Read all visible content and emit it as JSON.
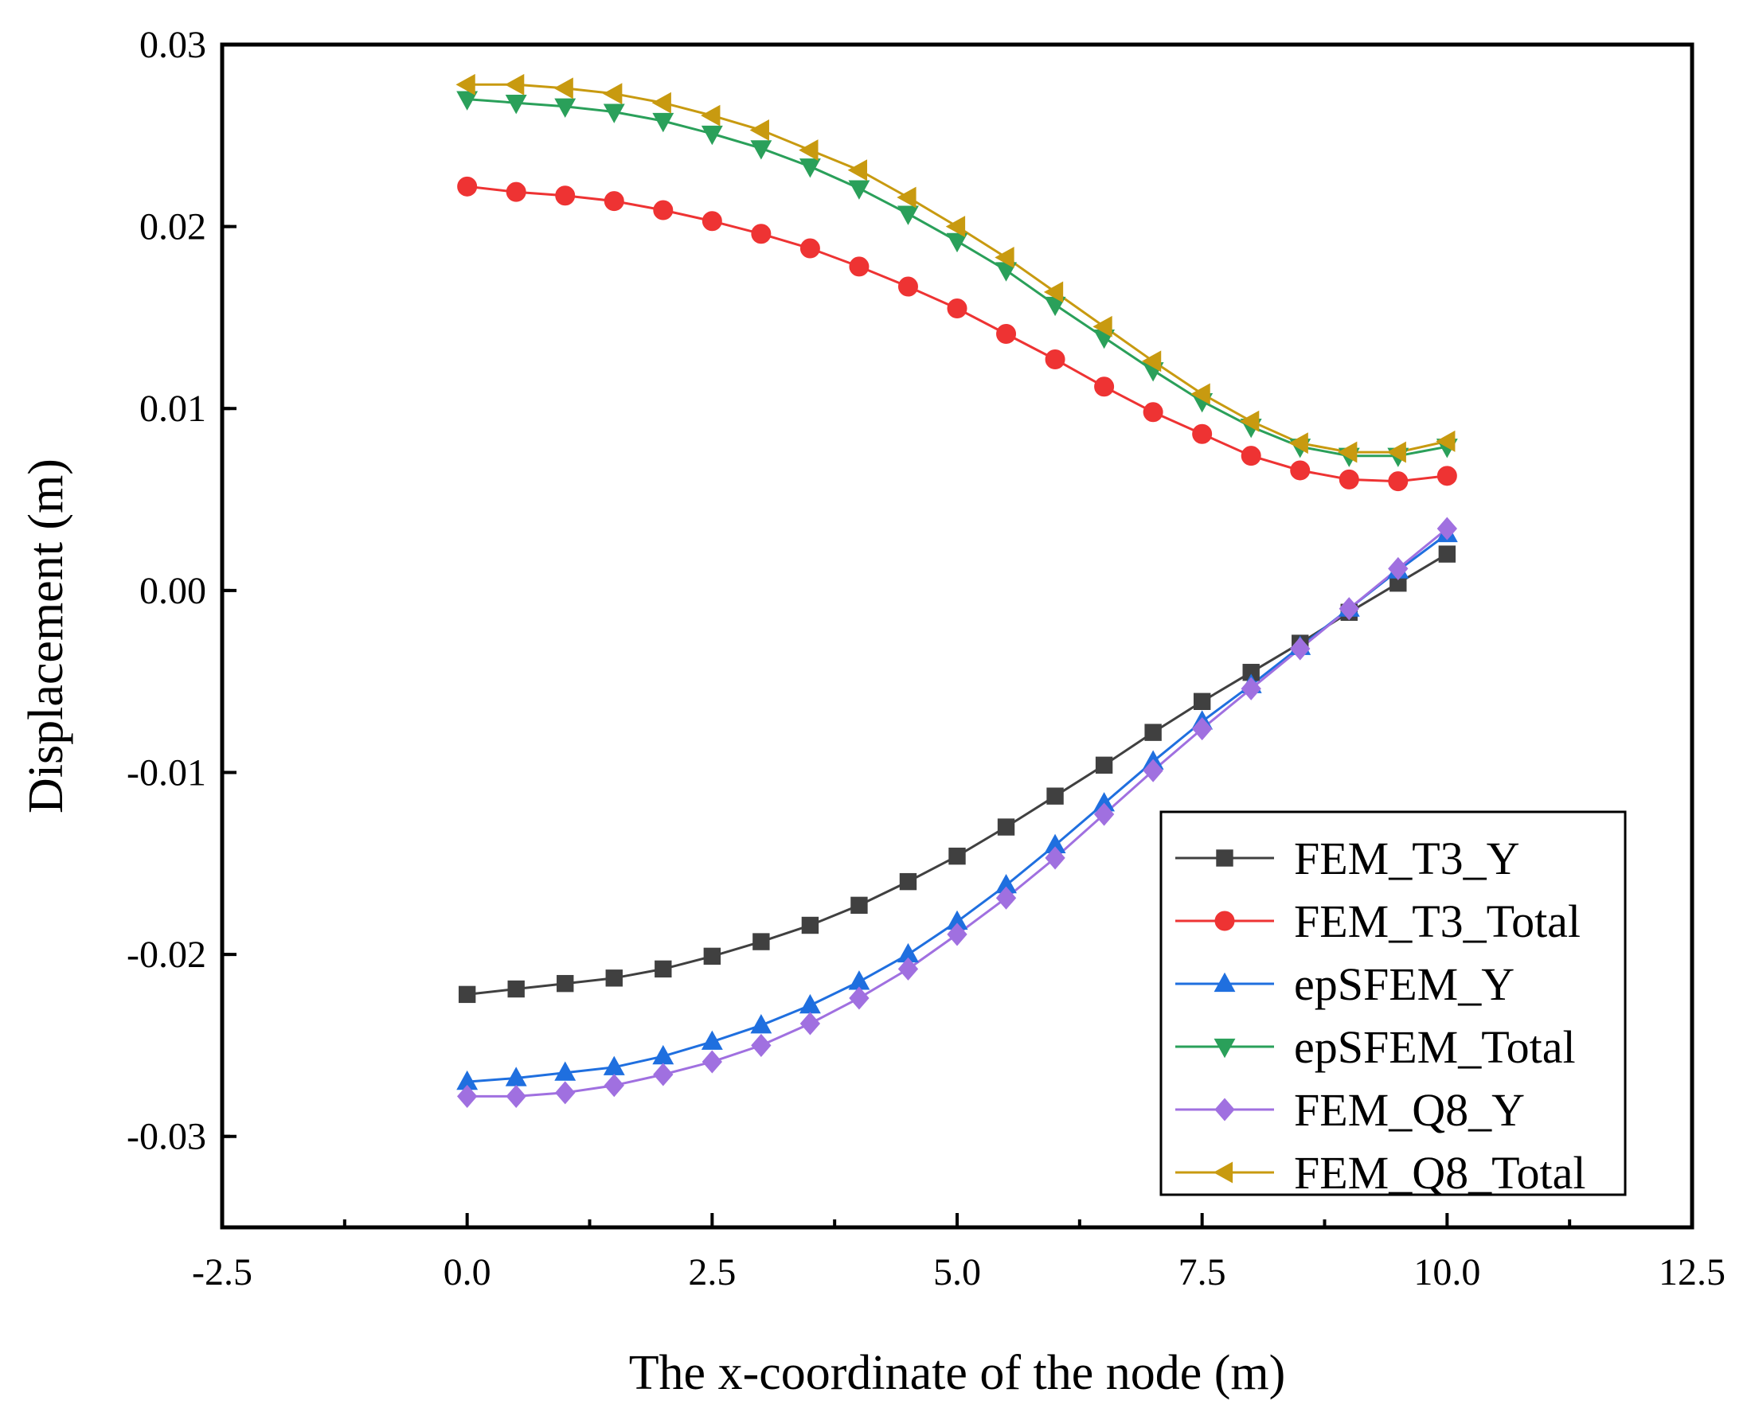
{
  "chart_data": {
    "type": "line",
    "title": "",
    "xlabel": "The x-coordinate of the node (m)",
    "ylabel": "Displacement (m)",
    "xlim": [
      -2.5,
      12.5
    ],
    "ylim": [
      -0.035,
      0.03
    ],
    "xticks": [
      -2.5,
      0.0,
      2.5,
      5.0,
      7.5,
      10.0,
      12.5
    ],
    "xtick_labels": [
      "-2.5",
      "0.0",
      "2.5",
      "5.0",
      "7.5",
      "10.0",
      "12.5"
    ],
    "yticks": [
      -0.03,
      -0.02,
      -0.01,
      0.0,
      0.01,
      0.02,
      0.03
    ],
    "ytick_labels": [
      "-0.03",
      "-0.02",
      "-0.01",
      "0.00",
      "0.01",
      "0.02",
      "0.03"
    ],
    "grid": false,
    "legend_position": "bottom-right",
    "x": [
      0,
      0.5,
      1,
      1.5,
      2,
      2.5,
      3,
      3.5,
      4,
      4.5,
      5,
      5.5,
      6,
      6.5,
      7,
      7.5,
      8,
      8.5,
      9,
      9.5,
      10
    ],
    "series": [
      {
        "name": "FEM_T3_Y",
        "color": "#404040",
        "marker": "square",
        "values": [
          -0.0222,
          -0.0219,
          -0.0216,
          -0.0213,
          -0.0208,
          -0.0201,
          -0.0193,
          -0.0184,
          -0.0173,
          -0.016,
          -0.0146,
          -0.013,
          -0.0113,
          -0.0096,
          -0.0078,
          -0.0061,
          -0.0045,
          -0.0029,
          -0.0012,
          0.0004,
          0.002
        ]
      },
      {
        "name": "FEM_T3_Total",
        "color": "#ee3333",
        "marker": "circle",
        "values": [
          0.0222,
          0.0219,
          0.0217,
          0.0214,
          0.0209,
          0.0203,
          0.0196,
          0.0188,
          0.0178,
          0.0167,
          0.0155,
          0.0141,
          0.0127,
          0.0112,
          0.0098,
          0.0086,
          0.0074,
          0.0066,
          0.0061,
          0.006,
          0.0063
        ]
      },
      {
        "name": "epSFEM_Y",
        "color": "#1f6fdf",
        "marker": "triangle-up",
        "values": [
          -0.027,
          -0.0268,
          -0.0265,
          -0.0262,
          -0.0256,
          -0.0248,
          -0.0239,
          -0.0228,
          -0.0215,
          -0.02,
          -0.0182,
          -0.0162,
          -0.014,
          -0.0117,
          -0.0094,
          -0.0072,
          -0.0052,
          -0.0031,
          -0.001,
          0.0011,
          0.0031
        ]
      },
      {
        "name": "epSFEM_Total",
        "color": "#2aa05a",
        "marker": "triangle-down",
        "values": [
          0.027,
          0.0268,
          0.0266,
          0.0263,
          0.0258,
          0.0251,
          0.0243,
          0.0233,
          0.0221,
          0.0207,
          0.0192,
          0.0176,
          0.0157,
          0.0139,
          0.0121,
          0.0104,
          0.009,
          0.0079,
          0.0074,
          0.0074,
          0.0079
        ]
      },
      {
        "name": "FEM_Q8_Y",
        "color": "#a070e0",
        "marker": "diamond",
        "values": [
          -0.0278,
          -0.0278,
          -0.0276,
          -0.0272,
          -0.0266,
          -0.0259,
          -0.025,
          -0.0238,
          -0.0224,
          -0.0208,
          -0.0189,
          -0.0169,
          -0.0147,
          -0.0123,
          -0.0099,
          -0.0076,
          -0.0054,
          -0.0032,
          -0.001,
          0.0012,
          0.0034
        ]
      },
      {
        "name": "FEM_Q8_Total",
        "color": "#c89a10",
        "marker": "triangle-left",
        "values": [
          0.0278,
          0.0278,
          0.0276,
          0.0273,
          0.0268,
          0.0261,
          0.0253,
          0.0242,
          0.0231,
          0.0216,
          0.02,
          0.0183,
          0.0164,
          0.0145,
          0.0126,
          0.0108,
          0.0093,
          0.0081,
          0.0076,
          0.0076,
          0.0082
        ]
      }
    ]
  }
}
